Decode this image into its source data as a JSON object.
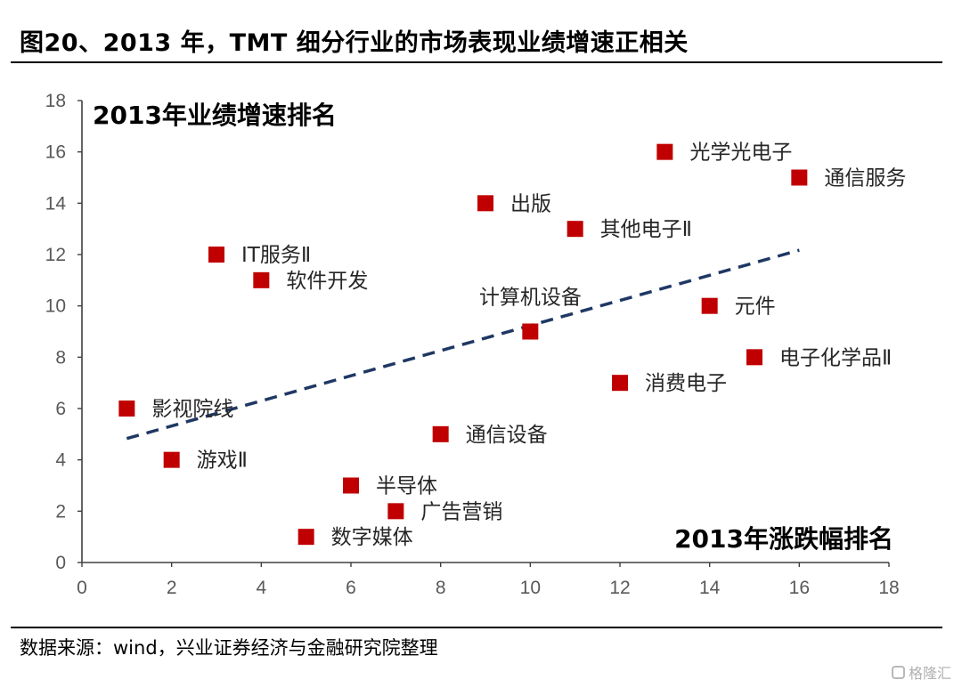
{
  "title": "图20、2013 年，TMT 细分行业的市场表现业绩增速正相关",
  "source": "数据来源：wind，兴业证券经济与金融研究院整理",
  "watermark": "格隆汇",
  "colors": {
    "marker": "#c00000",
    "trendline": "#1f3864",
    "axis": "#404040"
  },
  "chart_data": {
    "type": "scatter",
    "xlabel": "2013年涨跌幅排名",
    "ylabel": "2013年业绩增速排名",
    "xlim": [
      0,
      18
    ],
    "ylim": [
      0,
      18
    ],
    "x_ticks": [
      0,
      2,
      4,
      6,
      8,
      10,
      12,
      14,
      16,
      18
    ],
    "y_ticks": [
      0,
      2,
      4,
      6,
      8,
      10,
      12,
      14,
      16,
      18
    ],
    "grid": false,
    "points": [
      {
        "label": "光学光电子",
        "x": 13,
        "y": 16
      },
      {
        "label": "通信服务",
        "x": 16,
        "y": 15
      },
      {
        "label": "出版",
        "x": 9,
        "y": 14
      },
      {
        "label": "其他电子Ⅱ",
        "x": 11,
        "y": 13
      },
      {
        "label": "IT服务Ⅱ",
        "x": 3,
        "y": 12
      },
      {
        "label": "软件开发",
        "x": 4,
        "y": 11
      },
      {
        "label": "计算机设备",
        "x": 10,
        "y": 9
      },
      {
        "label": "元件",
        "x": 14,
        "y": 10
      },
      {
        "label": "电子化学品Ⅱ",
        "x": 15,
        "y": 8
      },
      {
        "label": "消费电子",
        "x": 12,
        "y": 7
      },
      {
        "label": "影视院线",
        "x": 1,
        "y": 6
      },
      {
        "label": "通信设备",
        "x": 8,
        "y": 5
      },
      {
        "label": "游戏Ⅱ",
        "x": 2,
        "y": 4
      },
      {
        "label": "半导体",
        "x": 6,
        "y": 3
      },
      {
        "label": "广告营销",
        "x": 7,
        "y": 2
      },
      {
        "label": "数字媒体",
        "x": 5,
        "y": 1
      }
    ],
    "trendline": {
      "style": "dashed",
      "from": {
        "x": 1,
        "y": 4.83
      },
      "to": {
        "x": 16,
        "y": 12.17
      }
    }
  }
}
